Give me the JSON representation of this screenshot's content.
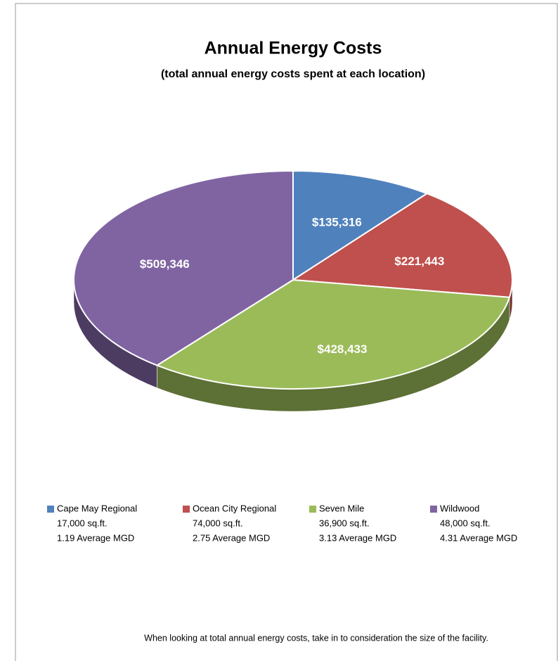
{
  "chart_data": {
    "type": "pie",
    "title": "Annual Energy Costs",
    "subtitle": "(total annual energy costs spent at each location)",
    "categories": [
      "Cape May Regional",
      "Ocean City Regional",
      "Seven Mile",
      "Wildwood"
    ],
    "values": [
      135316,
      221443,
      428433,
      509346
    ],
    "value_labels": [
      "$135,316",
      "$221,443",
      "$428,433",
      "$509,346"
    ],
    "colors": [
      "#4f81bd",
      "#c0504d",
      "#9bbb59",
      "#8064a2"
    ],
    "legend_details": [
      [
        "17,000 sq.ft.",
        "1.19 Average MGD"
      ],
      [
        "74,000 sq.ft.",
        "2.75 Average MGD"
      ],
      [
        "36,900 sq.ft.",
        "3.13 Average MGD"
      ],
      [
        "48,000 sq.ft.",
        "4.31 Average MGD"
      ]
    ],
    "legend": "bottom",
    "footnote": "When looking at total annual energy costs, take in to consideration the size of the facility."
  }
}
